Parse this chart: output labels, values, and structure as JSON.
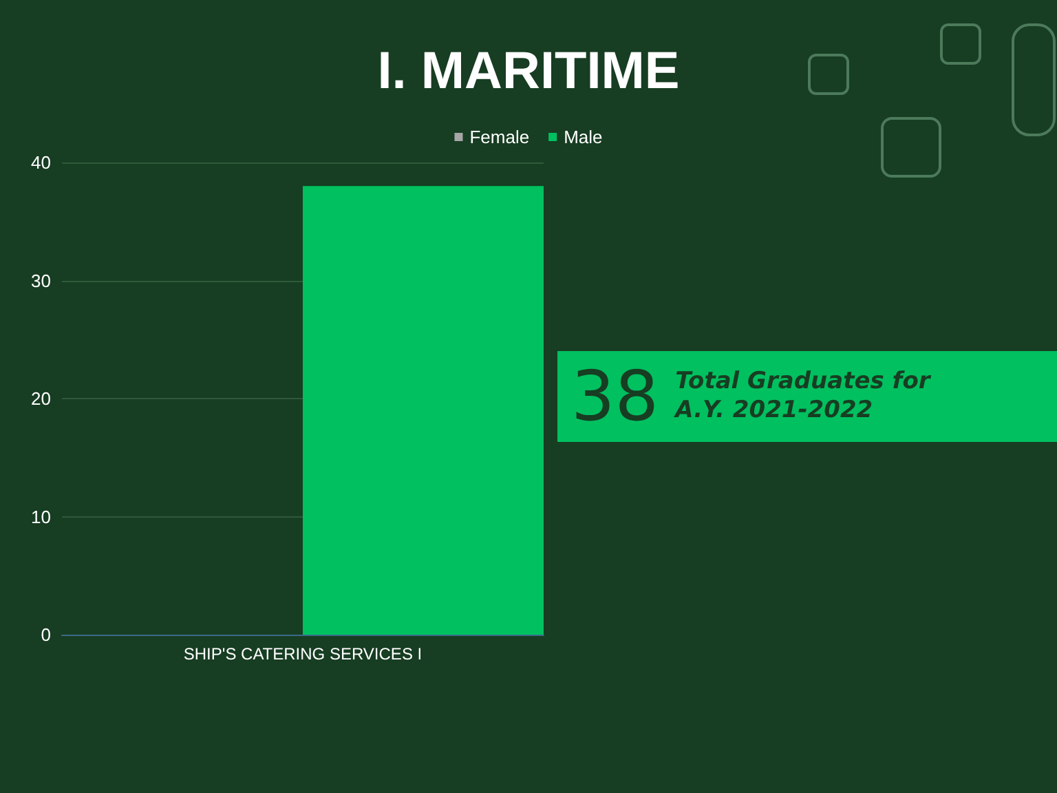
{
  "chart_data": {
    "type": "bar",
    "title": "I. MARITIME",
    "categories": [
      "SHIP'S CATERING SERVICES I"
    ],
    "series": [
      {
        "name": "Female",
        "color": "#a6a6a6",
        "values": [
          0
        ]
      },
      {
        "name": "Male",
        "color": "#00c060",
        "values": [
          38
        ]
      }
    ],
    "ylim": [
      0,
      40
    ],
    "yticks": [
      0,
      10,
      20,
      30,
      40
    ],
    "grid": "y",
    "legend": "top",
    "annotations": [
      "38",
      "Total Graduates for A.Y. 2021-2022"
    ]
  }
}
